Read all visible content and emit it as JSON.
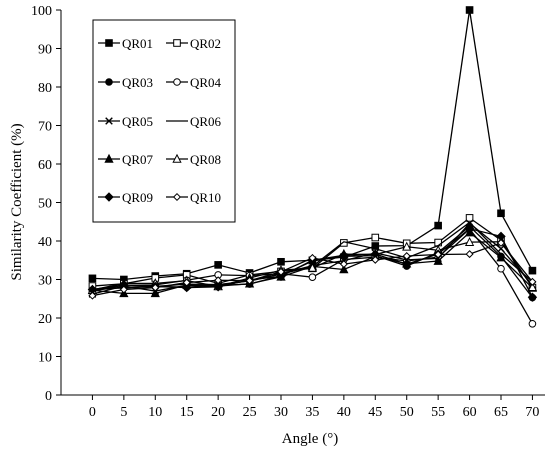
{
  "chart_data": {
    "type": "line",
    "title": "",
    "xlabel": "Angle (°)",
    "ylabel": "Similarity Coefficient (%)",
    "xlim": [
      -5,
      72
    ],
    "ylim": [
      0,
      100
    ],
    "x_ticks": [
      0,
      5,
      10,
      15,
      20,
      25,
      30,
      35,
      40,
      45,
      50,
      55,
      60,
      65,
      70
    ],
    "y_ticks": [
      0,
      10,
      20,
      30,
      40,
      50,
      60,
      70,
      80,
      90,
      100
    ],
    "grid": false,
    "legend_position": "top-left",
    "x": [
      0,
      5,
      10,
      15,
      20,
      25,
      30,
      35,
      40,
      45,
      50,
      55,
      60,
      65,
      70
    ],
    "series": [
      {
        "name": "QR01",
        "marker": "square-filled",
        "values": [
          30.3,
          30.0,
          30.9,
          31.5,
          33.8,
          31.7,
          34.6,
          35.0,
          35.8,
          38.7,
          38.8,
          44.0,
          100.0,
          47.2,
          32.3
        ]
      },
      {
        "name": "QR02",
        "marker": "square-open",
        "values": [
          28.3,
          28.9,
          30.4,
          31.2,
          29.0,
          31.2,
          32.1,
          32.9,
          39.5,
          40.9,
          39.4,
          39.6,
          46.0,
          40.2,
          27.9
        ]
      },
      {
        "name": "QR03",
        "marker": "circle-filled",
        "values": [
          27.2,
          28.0,
          28.2,
          28.0,
          28.5,
          28.8,
          31.0,
          34.8,
          36.0,
          36.2,
          33.5,
          37.0,
          43.8,
          36.0,
          25.3
        ]
      },
      {
        "name": "QR04",
        "marker": "circle-open",
        "values": [
          27.0,
          28.5,
          28.6,
          29.8,
          31.2,
          31.0,
          31.5,
          30.6,
          35.2,
          35.8,
          34.8,
          35.8,
          43.1,
          32.8,
          18.5
        ]
      },
      {
        "name": "QR05",
        "marker": "x",
        "values": [
          26.2,
          28.3,
          27.0,
          28.5,
          28.4,
          29.7,
          31.5,
          33.6,
          34.9,
          36.9,
          35.1,
          35.5,
          44.6,
          38.0,
          28.6
        ]
      },
      {
        "name": "QR06",
        "marker": "none",
        "values": [
          27.5,
          27.8,
          28.2,
          28.8,
          28.7,
          29.6,
          31.4,
          33.4,
          39.8,
          38.0,
          35.6,
          38.8,
          44.8,
          36.6,
          29.4
        ]
      },
      {
        "name": "QR07",
        "marker": "triangle-filled",
        "values": [
          27.2,
          26.4,
          26.4,
          28.6,
          28.3,
          28.9,
          30.7,
          33.4,
          32.6,
          36.0,
          34.1,
          34.8,
          42.2,
          35.7,
          27.8
        ]
      },
      {
        "name": "QR08",
        "marker": "triangle-open",
        "values": [
          27.3,
          29.0,
          29.0,
          29.7,
          28.2,
          30.4,
          32.4,
          33.0,
          36.6,
          36.5,
          38.5,
          37.6,
          39.7,
          39.8,
          28.0
        ]
      },
      {
        "name": "QR09",
        "marker": "diamond-filled",
        "values": [
          27.4,
          28.6,
          28.2,
          27.9,
          28.1,
          29.9,
          30.8,
          35.0,
          36.3,
          36.6,
          34.0,
          36.6,
          43.2,
          41.2,
          25.4
        ]
      },
      {
        "name": "QR10",
        "marker": "diamond-open",
        "values": [
          25.8,
          27.4,
          27.9,
          29.2,
          29.8,
          29.7,
          32.0,
          35.6,
          34.0,
          35.1,
          36.1,
          36.5,
          36.6,
          39.5,
          29.4
        ]
      }
    ]
  }
}
